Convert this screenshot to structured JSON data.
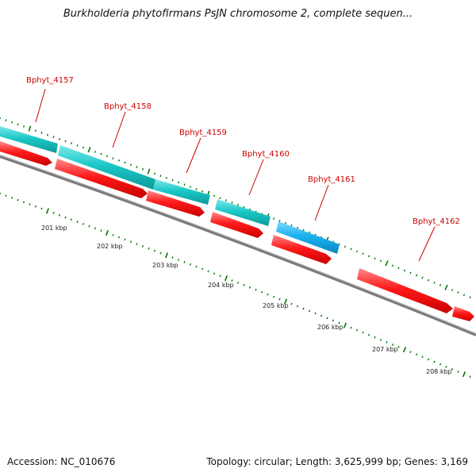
{
  "title": "Burkholderia phytofirmans PsJN chromosome 2, complete sequen...",
  "footer": {
    "accession": "Accession: NC_010676",
    "info": "Topology: circular; Length: 3,625,999 bp; Genes: 3,169"
  },
  "genes": [
    "Bphyt_4157",
    "Bphyt_4158",
    "Bphyt_4159",
    "Bphyt_4160",
    "Bphyt_4161",
    "Bphyt_4162"
  ],
  "kbp_labels": [
    "201 kbp",
    "202 kbp",
    "203 kbp",
    "204 kbp",
    "205 kbp",
    "206 kbp",
    "207 kbp",
    "208 kbp"
  ],
  "colors": {
    "cds": "#ff0000",
    "orf_teal": "#19c3c3",
    "orf_blue": "#1ab4ee",
    "backbone": "#888888",
    "ticks": "#007700",
    "label": "#cc0000"
  }
}
